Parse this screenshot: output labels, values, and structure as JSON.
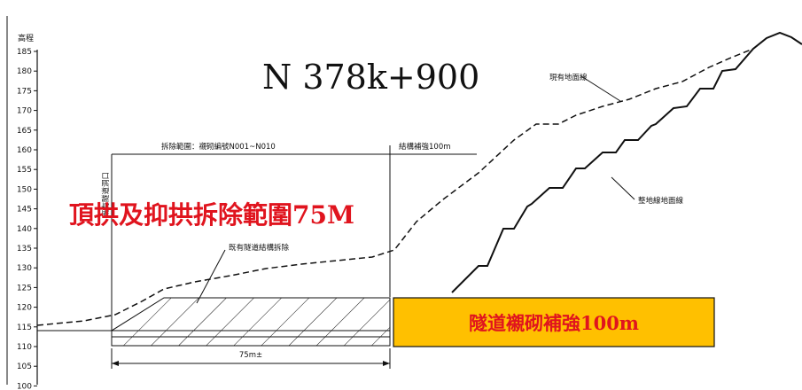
{
  "axis": {
    "title": "高程",
    "ticks": [
      "185",
      "180",
      "175",
      "170",
      "165",
      "160",
      "155",
      "150",
      "145",
      "140",
      "135",
      "130",
      "125",
      "120",
      "115",
      "110",
      "105",
      "100"
    ]
  },
  "section_label": "N 378k+900",
  "red_title": "頂拱及抑拱拆除範圍75M",
  "labels": {
    "existing_ground": "現有地面線",
    "graded_ground": "整地線地面線",
    "removal_range": "拆除範圍：襯砌編號N001~N010",
    "reinforce_range": "結構補強100m",
    "existing_structure": "既有隧道結構拆除",
    "portal": "既有隧道洞口",
    "length": "75m±"
  },
  "reinforce_box": {
    "label": "隧道襯砌補強100m",
    "fill": "#ffc000",
    "text_color": "#e0141e"
  },
  "colors": {
    "line": "#111111",
    "red": "#e0141e"
  }
}
